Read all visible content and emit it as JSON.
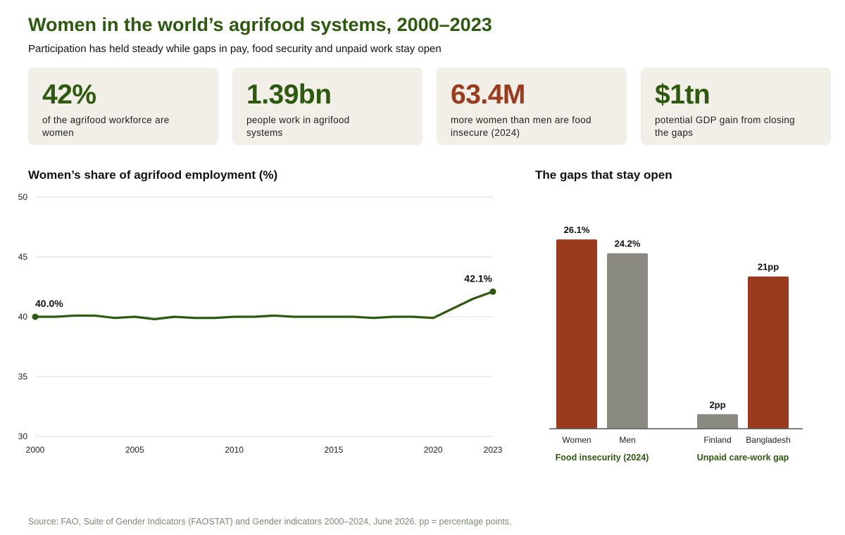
{
  "header": {
    "title": "Women in the world’s agrifood systems, 2000–2023",
    "subtitle": "Participation has held steady while gaps in pay, food security and unpaid work stay open"
  },
  "cards": [
    {
      "value": "42%",
      "label": "of the agrifood workforce are women",
      "color": "#2d5a0f"
    },
    {
      "value": "1.39bn",
      "label": "people work in agrifood systems",
      "color": "#2d5a0f"
    },
    {
      "value": "63.4M",
      "label": "more women than men are food insecure (2024)",
      "color": "#9a3b1e"
    },
    {
      "value": "$1tn",
      "label": "potential GDP gain from closing the gaps",
      "color": "#2d5a0f"
    }
  ],
  "chart_data": [
    {
      "type": "line",
      "title": "Women’s share of agrifood employment (%)",
      "x": [
        2000,
        2001,
        2002,
        2003,
        2004,
        2005,
        2006,
        2007,
        2008,
        2009,
        2010,
        2011,
        2012,
        2013,
        2014,
        2015,
        2016,
        2017,
        2018,
        2019,
        2020,
        2021,
        2022,
        2023
      ],
      "series": [
        {
          "values": [
            40.0,
            40.0,
            40.1,
            40.1,
            39.9,
            40.0,
            39.8,
            40.0,
            39.9,
            39.9,
            40.0,
            40.0,
            40.1,
            40.0,
            40.0,
            40.0,
            40.0,
            39.9,
            40.0,
            40.0,
            39.9,
            40.7,
            41.5,
            42.1
          ],
          "color": "#2d5a0f"
        }
      ],
      "ylim": [
        30,
        50
      ],
      "yticks": [
        30,
        35,
        40,
        45,
        50
      ],
      "xticks": [
        2000,
        2005,
        2010,
        2015,
        2020,
        2023
      ],
      "annotations": [
        {
          "x": 2000,
          "y": 40.0,
          "text": "40.0%"
        },
        {
          "x": 2023,
          "y": 42.1,
          "text": "42.1%"
        }
      ],
      "grid": true
    },
    {
      "type": "bar",
      "title": "The gaps that stay open",
      "groups": [
        {
          "name": "Food insecurity (2024)",
          "bars": [
            {
              "category": "Women",
              "value": 26.1,
              "label": "26.1%",
              "color": "#9a3b1e"
            },
            {
              "category": "Men",
              "value": 24.2,
              "label": "24.2%",
              "color": "#8a8a82"
            }
          ]
        },
        {
          "name": "Unpaid care-work gap",
          "bars": [
            {
              "category": "Finland",
              "value": 2,
              "label": "2pp",
              "color": "#8a8a82"
            },
            {
              "category": "Bangladesh",
              "value": 21,
              "label": "21pp",
              "color": "#9a3b1e"
            }
          ]
        }
      ]
    }
  ],
  "source": "Source: FAO, Suite of Gender Indicators (FAOSTAT) and Gender indicators 2000–2024, June 2026. pp = percentage points."
}
